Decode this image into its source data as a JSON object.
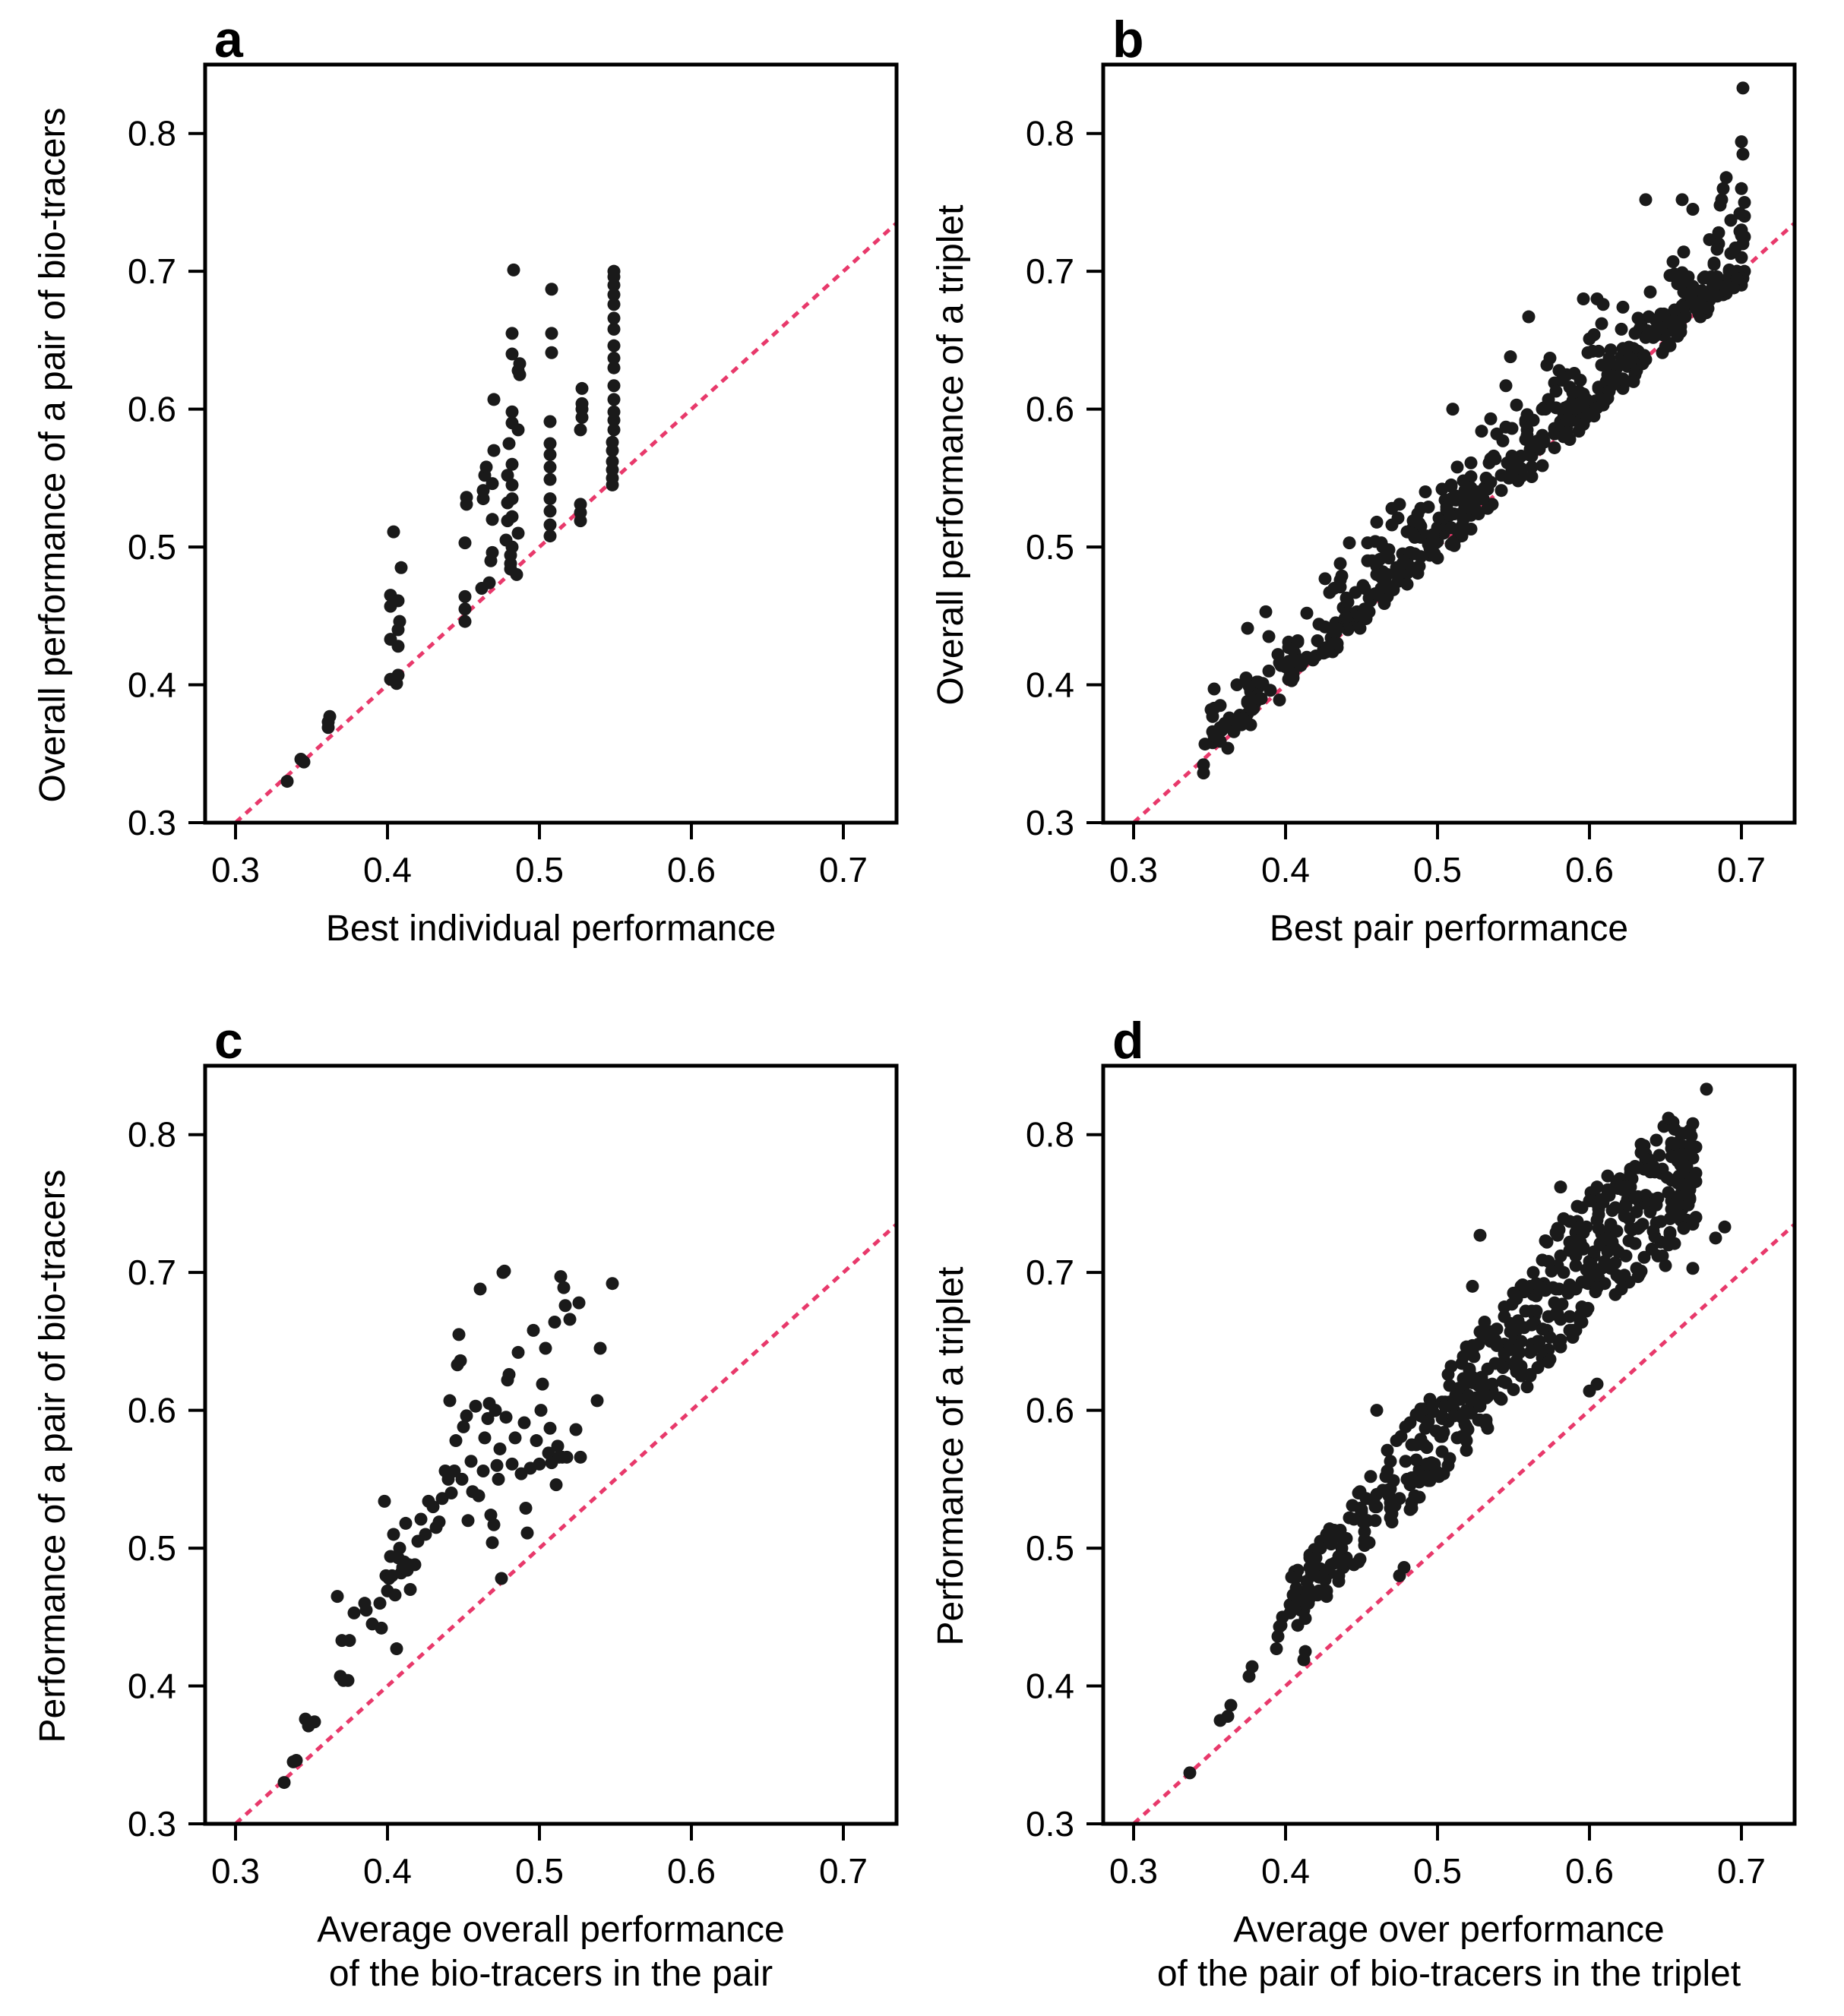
{
  "chart_data": [
    {
      "type": "scatter",
      "panel_label": "a",
      "xlabel": [
        "Best individual performance"
      ],
      "ylabel": "Overall performance of a pair of bio-tracers",
      "xlim": [
        0.28,
        0.735
      ],
      "ylim": [
        0.3,
        0.85
      ],
      "xticks": [
        0.3,
        0.4,
        0.5,
        0.6,
        0.7
      ],
      "yticks": [
        0.3,
        0.4,
        0.5,
        0.6,
        0.7,
        0.8
      ],
      "reference_line": "y = x",
      "colors": {
        "points": "#1a1a1a",
        "line": "#e8396b"
      },
      "points": [
        [
          0.334,
          0.33
        ],
        [
          0.343,
          0.346
        ],
        [
          0.345,
          0.344
        ],
        [
          0.361,
          0.369
        ],
        [
          0.361,
          0.373
        ],
        [
          0.362,
          0.377
        ],
        [
          0.402,
          0.404
        ],
        [
          0.402,
          0.433
        ],
        [
          0.402,
          0.457
        ],
        [
          0.402,
          0.465
        ],
        [
          0.404,
          0.511
        ],
        [
          0.406,
          0.401
        ],
        [
          0.407,
          0.407
        ],
        [
          0.407,
          0.44
        ],
        [
          0.407,
          0.428
        ],
        [
          0.407,
          0.461
        ],
        [
          0.408,
          0.446
        ],
        [
          0.409,
          0.485
        ],
        [
          0.451,
          0.446
        ],
        [
          0.451,
          0.455
        ],
        [
          0.451,
          0.464
        ],
        [
          0.451,
          0.503
        ],
        [
          0.452,
          0.531
        ],
        [
          0.452,
          0.536
        ],
        [
          0.462,
          0.47
        ],
        [
          0.463,
          0.535
        ],
        [
          0.463,
          0.541
        ],
        [
          0.464,
          0.552
        ],
        [
          0.465,
          0.558
        ],
        [
          0.467,
          0.474
        ],
        [
          0.468,
          0.49
        ],
        [
          0.469,
          0.496
        ],
        [
          0.469,
          0.52
        ],
        [
          0.469,
          0.546
        ],
        [
          0.47,
          0.57
        ],
        [
          0.47,
          0.607
        ],
        [
          0.478,
          0.505
        ],
        [
          0.479,
          0.519
        ],
        [
          0.479,
          0.532
        ],
        [
          0.479,
          0.552
        ],
        [
          0.48,
          0.575
        ],
        [
          0.481,
          0.484
        ],
        [
          0.481,
          0.488
        ],
        [
          0.481,
          0.494
        ],
        [
          0.482,
          0.5
        ],
        [
          0.482,
          0.522
        ],
        [
          0.482,
          0.535
        ],
        [
          0.482,
          0.545
        ],
        [
          0.482,
          0.56
        ],
        [
          0.482,
          0.59
        ],
        [
          0.482,
          0.598
        ],
        [
          0.482,
          0.64
        ],
        [
          0.482,
          0.655
        ],
        [
          0.483,
          0.701
        ],
        [
          0.485,
          0.48
        ],
        [
          0.486,
          0.51
        ],
        [
          0.486,
          0.585
        ],
        [
          0.486,
          0.628
        ],
        [
          0.487,
          0.625
        ],
        [
          0.487,
          0.633
        ],
        [
          0.507,
          0.508
        ],
        [
          0.507,
          0.516
        ],
        [
          0.507,
          0.526
        ],
        [
          0.507,
          0.535
        ],
        [
          0.507,
          0.549
        ],
        [
          0.507,
          0.558
        ],
        [
          0.507,
          0.567
        ],
        [
          0.507,
          0.575
        ],
        [
          0.507,
          0.591
        ],
        [
          0.508,
          0.641
        ],
        [
          0.508,
          0.655
        ],
        [
          0.508,
          0.687
        ],
        [
          0.527,
          0.519
        ],
        [
          0.527,
          0.525
        ],
        [
          0.527,
          0.531
        ],
        [
          0.527,
          0.585
        ],
        [
          0.528,
          0.594
        ],
        [
          0.528,
          0.6
        ],
        [
          0.528,
          0.604
        ],
        [
          0.528,
          0.615
        ],
        [
          0.548,
          0.545
        ],
        [
          0.548,
          0.55
        ],
        [
          0.548,
          0.556
        ],
        [
          0.548,
          0.562
        ],
        [
          0.548,
          0.57
        ],
        [
          0.548,
          0.576
        ],
        [
          0.549,
          0.585
        ],
        [
          0.549,
          0.592
        ],
        [
          0.549,
          0.598
        ],
        [
          0.549,
          0.607
        ],
        [
          0.549,
          0.617
        ],
        [
          0.549,
          0.63
        ],
        [
          0.549,
          0.637
        ],
        [
          0.549,
          0.646
        ],
        [
          0.549,
          0.658
        ],
        [
          0.549,
          0.666
        ],
        [
          0.549,
          0.676
        ],
        [
          0.549,
          0.683
        ],
        [
          0.549,
          0.69
        ],
        [
          0.549,
          0.696
        ],
        [
          0.549,
          0.7
        ]
      ]
    },
    {
      "type": "scatter",
      "panel_label": "b",
      "xlabel": [
        "Best pair performance"
      ],
      "ylabel": "Overall performance of a triplet",
      "xlim": [
        0.28,
        0.735
      ],
      "ylim": [
        0.3,
        0.85
      ],
      "xticks": [
        0.3,
        0.4,
        0.5,
        0.6,
        0.7
      ],
      "yticks": [
        0.3,
        0.4,
        0.5,
        0.6,
        0.7,
        0.8
      ],
      "reference_line": "y = x",
      "colors": {
        "points": "#1a1a1a",
        "line": "#e8396b"
      },
      "point_cloud": {
        "count": 520,
        "x_range": [
          0.345,
          0.702
        ],
        "spread_above_diagonal": [
          0.0,
          0.09
        ],
        "seed": 7
      },
      "points": [
        [
          0.346,
          0.336
        ],
        [
          0.373,
          0.375
        ],
        [
          0.375,
          0.379
        ],
        [
          0.376,
          0.386
        ],
        [
          0.405,
          0.405
        ],
        [
          0.406,
          0.413
        ],
        [
          0.42,
          0.421
        ],
        [
          0.425,
          0.426
        ],
        [
          0.43,
          0.434
        ],
        [
          0.44,
          0.443
        ],
        [
          0.445,
          0.445
        ],
        [
          0.463,
          0.503
        ],
        [
          0.47,
          0.516
        ],
        [
          0.492,
          0.54
        ],
        [
          0.51,
          0.6
        ],
        [
          0.545,
          0.617
        ],
        [
          0.548,
          0.638
        ],
        [
          0.56,
          0.667
        ],
        [
          0.585,
          0.625
        ],
        [
          0.596,
          0.68
        ],
        [
          0.605,
          0.68
        ],
        [
          0.609,
          0.676
        ],
        [
          0.637,
          0.752
        ],
        [
          0.661,
          0.752
        ],
        [
          0.668,
          0.745
        ],
        [
          0.688,
          0.76
        ],
        [
          0.69,
          0.768
        ],
        [
          0.7,
          0.794
        ],
        [
          0.701,
          0.785
        ],
        [
          0.701,
          0.833
        ],
        [
          0.7,
          0.76
        ],
        [
          0.702,
          0.75
        ],
        [
          0.702,
          0.74
        ],
        [
          0.7,
          0.73
        ],
        [
          0.701,
          0.72
        ],
        [
          0.7,
          0.71
        ],
        [
          0.702,
          0.7
        ],
        [
          0.701,
          0.695
        ],
        [
          0.7,
          0.69
        ]
      ]
    },
    {
      "type": "scatter",
      "panel_label": "c",
      "xlabel": [
        "Average overall performance",
        "of the bio-tracers in the pair"
      ],
      "ylabel": "Performance of a pair of bio-tracers",
      "xlim": [
        0.28,
        0.735
      ],
      "ylim": [
        0.3,
        0.85
      ],
      "xticks": [
        0.3,
        0.4,
        0.5,
        0.6,
        0.7
      ],
      "yticks": [
        0.3,
        0.4,
        0.5,
        0.6,
        0.7,
        0.8
      ],
      "reference_line": "y = x",
      "colors": {
        "points": "#1a1a1a",
        "line": "#e8396b"
      },
      "points": [
        [
          0.332,
          0.33
        ],
        [
          0.338,
          0.345
        ],
        [
          0.34,
          0.346
        ],
        [
          0.346,
          0.376
        ],
        [
          0.348,
          0.371
        ],
        [
          0.352,
          0.374
        ],
        [
          0.367,
          0.465
        ],
        [
          0.369,
          0.407
        ],
        [
          0.37,
          0.433
        ],
        [
          0.371,
          0.404
        ],
        [
          0.374,
          0.404
        ],
        [
          0.375,
          0.433
        ],
        [
          0.378,
          0.453
        ],
        [
          0.385,
          0.46
        ],
        [
          0.386,
          0.455
        ],
        [
          0.39,
          0.445
        ],
        [
          0.395,
          0.46
        ],
        [
          0.396,
          0.442
        ],
        [
          0.398,
          0.534
        ],
        [
          0.399,
          0.48
        ],
        [
          0.4,
          0.469
        ],
        [
          0.401,
          0.478
        ],
        [
          0.402,
          0.494
        ],
        [
          0.403,
          0.48
        ],
        [
          0.404,
          0.51
        ],
        [
          0.405,
          0.466
        ],
        [
          0.406,
          0.427
        ],
        [
          0.407,
          0.493
        ],
        [
          0.408,
          0.5
        ],
        [
          0.409,
          0.482
        ],
        [
          0.41,
          0.486
        ],
        [
          0.411,
          0.49
        ],
        [
          0.412,
          0.518
        ],
        [
          0.413,
          0.484
        ],
        [
          0.414,
          0.488
        ],
        [
          0.415,
          0.47
        ],
        [
          0.418,
          0.488
        ],
        [
          0.42,
          0.505
        ],
        [
          0.422,
          0.521
        ],
        [
          0.425,
          0.51
        ],
        [
          0.427,
          0.534
        ],
        [
          0.43,
          0.53
        ],
        [
          0.432,
          0.515
        ],
        [
          0.434,
          0.519
        ],
        [
          0.436,
          0.536
        ],
        [
          0.438,
          0.556
        ],
        [
          0.44,
          0.55
        ],
        [
          0.441,
          0.607
        ],
        [
          0.442,
          0.54
        ],
        [
          0.444,
          0.556
        ],
        [
          0.445,
          0.578
        ],
        [
          0.446,
          0.633
        ],
        [
          0.447,
          0.655
        ],
        [
          0.448,
          0.636
        ],
        [
          0.449,
          0.55
        ],
        [
          0.45,
          0.588
        ],
        [
          0.452,
          0.596
        ],
        [
          0.453,
          0.52
        ],
        [
          0.455,
          0.563
        ],
        [
          0.456,
          0.541
        ],
        [
          0.458,
          0.603
        ],
        [
          0.46,
          0.538
        ],
        [
          0.461,
          0.688
        ],
        [
          0.463,
          0.556
        ],
        [
          0.464,
          0.58
        ],
        [
          0.466,
          0.594
        ],
        [
          0.467,
          0.605
        ],
        [
          0.468,
          0.524
        ],
        [
          0.469,
          0.504
        ],
        [
          0.47,
          0.517
        ],
        [
          0.471,
          0.6
        ],
        [
          0.472,
          0.56
        ],
        [
          0.473,
          0.55
        ],
        [
          0.474,
          0.572
        ],
        [
          0.475,
          0.478
        ],
        [
          0.476,
          0.7
        ],
        [
          0.477,
          0.701
        ],
        [
          0.478,
          0.595
        ],
        [
          0.479,
          0.622
        ],
        [
          0.48,
          0.626
        ],
        [
          0.482,
          0.561
        ],
        [
          0.484,
          0.58
        ],
        [
          0.486,
          0.642
        ],
        [
          0.488,
          0.554
        ],
        [
          0.49,
          0.591
        ],
        [
          0.491,
          0.529
        ],
        [
          0.492,
          0.511
        ],
        [
          0.494,
          0.558
        ],
        [
          0.496,
          0.658
        ],
        [
          0.498,
          0.578
        ],
        [
          0.5,
          0.561
        ],
        [
          0.501,
          0.6
        ],
        [
          0.502,
          0.619
        ],
        [
          0.504,
          0.645
        ],
        [
          0.506,
          0.569
        ],
        [
          0.507,
          0.587
        ],
        [
          0.508,
          0.562
        ],
        [
          0.51,
          0.664
        ],
        [
          0.511,
          0.546
        ],
        [
          0.512,
          0.574
        ],
        [
          0.513,
          0.566
        ],
        [
          0.514,
          0.697
        ],
        [
          0.515,
          0.566
        ],
        [
          0.516,
          0.689
        ],
        [
          0.517,
          0.676
        ],
        [
          0.518,
          0.566
        ],
        [
          0.52,
          0.666
        ],
        [
          0.524,
          0.586
        ],
        [
          0.526,
          0.678
        ],
        [
          0.527,
          0.566
        ],
        [
          0.538,
          0.607
        ],
        [
          0.54,
          0.645
        ],
        [
          0.548,
          0.692
        ]
      ]
    },
    {
      "type": "scatter",
      "panel_label": "d",
      "xlabel": [
        "Average over performance",
        "of the pair of bio-tracers in the triplet"
      ],
      "ylabel": "Performance of a triplet",
      "xlim": [
        0.28,
        0.735
      ],
      "ylim": [
        0.3,
        0.85
      ],
      "xticks": [
        0.3,
        0.4,
        0.5,
        0.6,
        0.7
      ],
      "yticks": [
        0.3,
        0.4,
        0.5,
        0.6,
        0.7,
        0.8
      ],
      "reference_line": "y = x",
      "colors": {
        "points": "#1a1a1a",
        "line": "#e8396b"
      },
      "point_cloud": {
        "count": 560,
        "x_range": [
          0.395,
          0.67
        ],
        "spread_above_diagonal": [
          0.01,
          0.16
        ],
        "seed": 11
      },
      "points": [
        [
          0.337,
          0.337
        ],
        [
          0.357,
          0.375
        ],
        [
          0.362,
          0.378
        ],
        [
          0.364,
          0.386
        ],
        [
          0.376,
          0.407
        ],
        [
          0.378,
          0.414
        ],
        [
          0.394,
          0.427
        ],
        [
          0.395,
          0.436
        ],
        [
          0.396,
          0.443
        ],
        [
          0.398,
          0.45
        ],
        [
          0.403,
          0.459
        ],
        [
          0.405,
          0.466
        ],
        [
          0.412,
          0.419
        ],
        [
          0.413,
          0.425
        ],
        [
          0.46,
          0.6
        ],
        [
          0.475,
          0.48
        ],
        [
          0.478,
          0.486
        ],
        [
          0.523,
          0.69
        ],
        [
          0.528,
          0.727
        ],
        [
          0.581,
          0.762
        ],
        [
          0.588,
          0.718
        ],
        [
          0.6,
          0.614
        ],
        [
          0.605,
          0.619
        ],
        [
          0.612,
          0.77
        ],
        [
          0.62,
          0.768
        ],
        [
          0.624,
          0.748
        ],
        [
          0.634,
          0.787
        ],
        [
          0.636,
          0.754
        ],
        [
          0.64,
          0.745
        ],
        [
          0.641,
          0.717
        ],
        [
          0.65,
          0.705
        ],
        [
          0.653,
          0.728
        ],
        [
          0.658,
          0.794
        ],
        [
          0.659,
          0.77
        ],
        [
          0.661,
          0.76
        ],
        [
          0.666,
          0.76
        ],
        [
          0.668,
          0.703
        ],
        [
          0.677,
          0.833
        ],
        [
          0.683,
          0.725
        ],
        [
          0.689,
          0.733
        ]
      ]
    }
  ]
}
